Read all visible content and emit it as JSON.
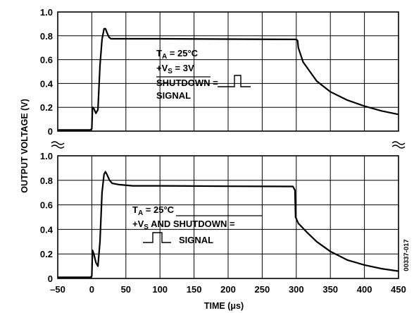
{
  "chart_data": {
    "type": "line",
    "xlabel": "TIME (μs)",
    "ylabel": "OUTPUT VOLTAGE (V)",
    "xlim": [
      -50,
      450
    ],
    "x_ticks": [
      "–50",
      "0",
      "50",
      "100",
      "150",
      "200",
      "250",
      "300",
      "350",
      "400",
      "450"
    ],
    "figure_id": "00337-017",
    "grid": true,
    "panels": [
      {
        "position": "top",
        "ylim": [
          0,
          1.0
        ],
        "y_ticks": [
          "0",
          "0.2",
          "0.4",
          "0.6",
          "0.8",
          "1.0"
        ],
        "annotation": {
          "line1_main": "T",
          "line1_sub": "A",
          "line1_rest": " = 25°C",
          "line2_main": "+V",
          "line2_sub": "S",
          "line2_rest": " = 3V",
          "line3": "SHUTDOWN =",
          "line4": "SIGNAL"
        },
        "series": [
          {
            "x": [
              -50,
              -2,
              0,
              1,
              3,
              6,
              9,
              12,
              15,
              18,
              20,
              22,
              25,
              28,
              35,
              60,
              100,
              200,
              300,
              302,
              303,
              310,
              330,
              350,
              375,
              400,
              425,
              450
            ],
            "y": [
              0.01,
              0.01,
              0.02,
              0.2,
              0.19,
              0.15,
              0.18,
              0.55,
              0.77,
              0.86,
              0.86,
              0.83,
              0.79,
              0.775,
              0.775,
              0.775,
              0.775,
              0.772,
              0.77,
              0.76,
              0.7,
              0.58,
              0.42,
              0.33,
              0.26,
              0.21,
              0.17,
              0.14
            ]
          }
        ]
      },
      {
        "position": "bottom",
        "ylim": [
          0,
          1.0
        ],
        "y_ticks": [
          "0",
          "0.2",
          "0.4",
          "0.6",
          "0.8",
          "1.0"
        ],
        "annotation": {
          "line1_main": "T",
          "line1_sub": "A",
          "line1_rest": " = 25°C",
          "line2_main": "+V",
          "line2_sub": "S",
          "line2_mid": " AND ",
          "line2_over": "SHUTDOWN",
          "line2_rest": " =",
          "line3": "SIGNAL"
        },
        "series": [
          {
            "x": [
              -50,
              -2,
              0,
              1,
              3,
              6,
              9,
              12,
              15,
              18,
              20,
              22,
              26,
              30,
              40,
              60,
              100,
              200,
              295,
              298,
              299,
              303,
              315,
              330,
              350,
              375,
              400,
              425,
              450
            ],
            "y": [
              0.01,
              0.01,
              0.02,
              0.23,
              0.2,
              0.13,
              0.1,
              0.3,
              0.7,
              0.85,
              0.87,
              0.85,
              0.8,
              0.775,
              0.765,
              0.755,
              0.755,
              0.752,
              0.75,
              0.72,
              0.5,
              0.45,
              0.38,
              0.3,
              0.22,
              0.15,
              0.11,
              0.08,
              0.06
            ]
          }
        ]
      }
    ]
  }
}
